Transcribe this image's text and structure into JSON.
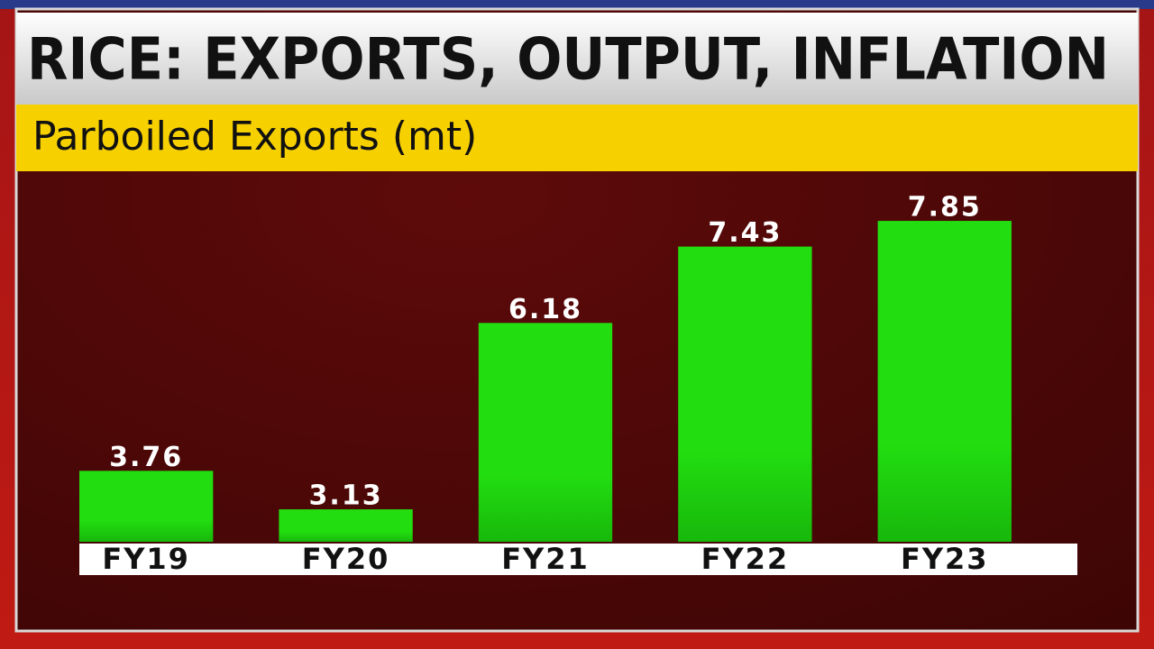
{
  "chart_data": {
    "type": "bar",
    "title": "RICE: EXPORTS, OUTPUT, INFLATION",
    "subtitle": "Parboiled Exports (mt)",
    "categories": [
      "FY19",
      "FY20",
      "FY21",
      "FY22",
      "FY23"
    ],
    "values": [
      3.76,
      3.13,
      6.18,
      7.43,
      7.85
    ],
    "color": "#1fd40f",
    "ylim": [
      2.6,
      8.5
    ]
  }
}
